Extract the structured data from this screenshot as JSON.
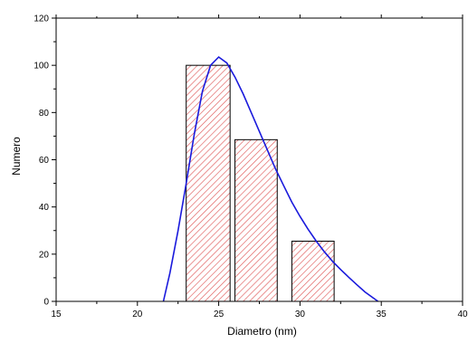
{
  "chart_data": {
    "type": "bar",
    "xlabel": "Diametro (nm)",
    "ylabel": "Numero",
    "xlim": [
      15,
      40
    ],
    "ylim": [
      0,
      120
    ],
    "x_ticks": [
      15,
      20,
      25,
      30,
      35,
      40
    ],
    "y_ticks": [
      0,
      20,
      40,
      60,
      80,
      100,
      120
    ],
    "grid": false,
    "bars": [
      {
        "x_start": 23.0,
        "x_end": 25.7,
        "value": 100
      },
      {
        "x_start": 26.0,
        "x_end": 28.6,
        "value": 68.5
      },
      {
        "x_start": 29.5,
        "x_end": 32.1,
        "value": 25.5
      }
    ],
    "bar_style": {
      "fill": "hatched",
      "hatch_color": "#e05a5a",
      "edge_color": "#000000"
    },
    "fit_curve": {
      "color": "#1a1adc",
      "points": [
        [
          21.6,
          0
        ],
        [
          22.0,
          12
        ],
        [
          22.5,
          30
        ],
        [
          23.0,
          50
        ],
        [
          23.5,
          71
        ],
        [
          24.0,
          89
        ],
        [
          24.5,
          100
        ],
        [
          25.0,
          103.5
        ],
        [
          25.5,
          101
        ],
        [
          26.0,
          95
        ],
        [
          26.5,
          88
        ],
        [
          27.0,
          80
        ],
        [
          27.5,
          72
        ],
        [
          28.0,
          64
        ],
        [
          28.5,
          56
        ],
        [
          29.0,
          49
        ],
        [
          29.5,
          42
        ],
        [
          30.0,
          36
        ],
        [
          30.5,
          30.5
        ],
        [
          31.0,
          25.5
        ],
        [
          31.5,
          21
        ],
        [
          32.0,
          17
        ],
        [
          32.5,
          13.5
        ],
        [
          33.0,
          10.2
        ],
        [
          33.5,
          7
        ],
        [
          34.0,
          4
        ],
        [
          34.5,
          1.5
        ],
        [
          34.8,
          0
        ]
      ]
    }
  }
}
